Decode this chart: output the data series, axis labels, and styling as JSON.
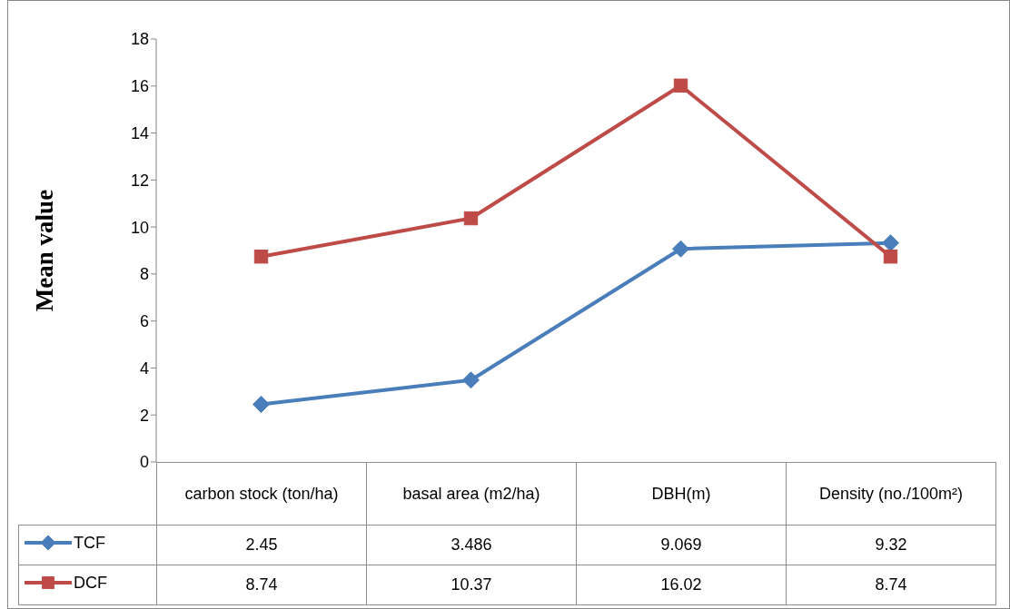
{
  "chart_data": {
    "type": "line",
    "ylabel": "Mean value",
    "categories": [
      "carbon stock (ton/ha)",
      "basal area (m2/ha)",
      "DBH(m)",
      "Density (no./100m²)"
    ],
    "series": [
      {
        "name": "TCF",
        "color": "#4a7ebb",
        "values": [
          2.45,
          3.486,
          9.069,
          9.32
        ],
        "marker": "diamond"
      },
      {
        "name": "DCF",
        "color": "#be4b48",
        "values": [
          8.74,
          10.37,
          16.02,
          8.74
        ],
        "marker": "square"
      }
    ],
    "ylim": [
      0,
      18
    ],
    "yticks": [
      0,
      2,
      4,
      6,
      8,
      10,
      12,
      14,
      16,
      18
    ],
    "grid": false,
    "legend": "bottom",
    "data_labels": true,
    "line_style": "solid"
  }
}
